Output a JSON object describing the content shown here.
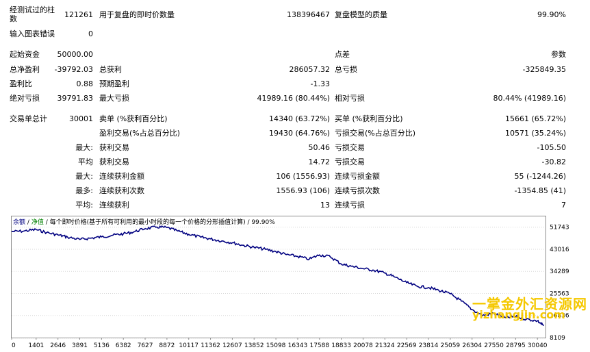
{
  "report": {
    "bars_label": "经测试过的柱数",
    "bars_value": "121261",
    "ticks_label": "用于复盘的即时价数量",
    "ticks_value": "138396467",
    "quality_label": "复盘模型的质量",
    "quality_value": "99.90%",
    "mismatch_label": "输入图表错误",
    "mismatch_value": "0",
    "deposit_label": "起始资金",
    "deposit_value": "50000.00",
    "spread_label": "点差",
    "spread_value": "参数",
    "net_profit_label": "总净盈利",
    "net_profit_value": "-39792.03",
    "gross_profit_label": "总获利",
    "gross_profit_value": "286057.32",
    "gross_loss_label": "总亏损",
    "gross_loss_value": "-325849.35",
    "profit_factor_label": "盈利比",
    "profit_factor_value": "0.88",
    "expected_payoff_label": "预期盈利",
    "expected_payoff_value": "-1.33",
    "abs_drawdown_label": "绝对亏损",
    "abs_drawdown_value": "39791.83",
    "max_drawdown_label": "最大亏损",
    "max_drawdown_value": "41989.16 (80.44%)",
    "rel_drawdown_label": "相对亏损",
    "rel_drawdown_value": "80.44% (41989.16)",
    "total_trades_label": "交易单总计",
    "total_trades_value": "30001",
    "short_label": "卖单 (%获利百分比)",
    "short_value": "14340 (63.72%)",
    "long_label": "买单 (%获利百分比)",
    "long_value": "15661 (65.72%)",
    "profit_trades_label": "盈利交易(%占总百分比)",
    "profit_trades_value": "19430 (64.76%)",
    "loss_trades_label": "亏损交易(%占总百分比)",
    "loss_trades_value": "10571 (35.24%)",
    "largest_prefix": "最大:",
    "largest_profit_label": "获利交易",
    "largest_profit_value": "50.46",
    "largest_loss_label": "亏损交易",
    "largest_loss_value": "-105.50",
    "average_prefix": "平均",
    "average_profit_label": "获利交易",
    "average_profit_value": "14.72",
    "average_loss_label": "亏损交易",
    "average_loss_value": "-30.82",
    "max_consec_prefix": "最大:",
    "max_consec_wins_label": "连续获利金额",
    "max_consec_wins_value": "106 (1556.93)",
    "max_consec_losses_label": "连续亏损金额",
    "max_consec_losses_value": "55 (-1244.26)",
    "maximal_prefix": "最多:",
    "maximal_profit_label": "连续获利次数",
    "maximal_profit_value": "1556.93 (106)",
    "maximal_loss_label": "连续亏损次数",
    "maximal_loss_value": "-1354.85 (41)",
    "avg_consec_prefix": "平均:",
    "avg_consec_wins_label": "连续获利",
    "avg_consec_wins_value": "13",
    "avg_consec_losses_label": "连续亏损",
    "avg_consec_losses_value": "7"
  },
  "chart_data": {
    "type": "line",
    "legend": {
      "balance": "余额",
      "separator1": "/",
      "equity": "净值",
      "separator2": "/",
      "tick_label": "每个即时价格(基于所有可利用的最小时段的每一个价格的分形插值计算)",
      "separator3": "/",
      "quality": "99.90%"
    },
    "x_ticks": [
      "0",
      "1401",
      "2646",
      "3891",
      "5136",
      "6382",
      "7627",
      "8872",
      "10117",
      "11362",
      "12607",
      "13852",
      "15098",
      "16343",
      "17588",
      "18833",
      "20078",
      "21324",
      "22569",
      "23814",
      "25059",
      "26304",
      "27550",
      "28795",
      "30040"
    ],
    "y_ticks": [
      "51743",
      "43016",
      "34289",
      "25563",
      "16836",
      "8109"
    ],
    "xlim": [
      0,
      30500
    ],
    "ylim": [
      8109,
      56000
    ],
    "series": [
      {
        "color": "#000080",
        "x": [
          0,
          700,
          1401,
          2000,
          2646,
          3200,
          3891,
          4500,
          5136,
          5800,
          6382,
          7000,
          7627,
          8300,
          8872,
          9500,
          10117,
          10800,
          11362,
          12000,
          12607,
          13200,
          13852,
          14500,
          15098,
          15700,
          16343,
          17000,
          17588,
          18200,
          18833,
          19400,
          20078,
          20700,
          21324,
          21900,
          22569,
          23200,
          23814,
          24400,
          25059,
          25700,
          26304,
          26900,
          27550,
          28200,
          28795,
          29400,
          30040,
          30400
        ],
        "y": [
          50000,
          50200,
          50800,
          49600,
          48700,
          47800,
          46900,
          47400,
          47900,
          48600,
          49100,
          49900,
          51200,
          51800,
          51600,
          50200,
          48900,
          47800,
          47100,
          46300,
          45600,
          44600,
          43800,
          43000,
          42100,
          40900,
          40200,
          39100,
          40800,
          40100,
          37200,
          36300,
          35400,
          34700,
          33600,
          32000,
          29800,
          28300,
          27900,
          26800,
          25400,
          22500,
          19200,
          16800,
          17700,
          16000,
          16400,
          15400,
          14700,
          12800
        ]
      }
    ]
  },
  "watermark": {
    "line1": "一掌金外汇资源网",
    "line2": "yizhangjin.com"
  }
}
